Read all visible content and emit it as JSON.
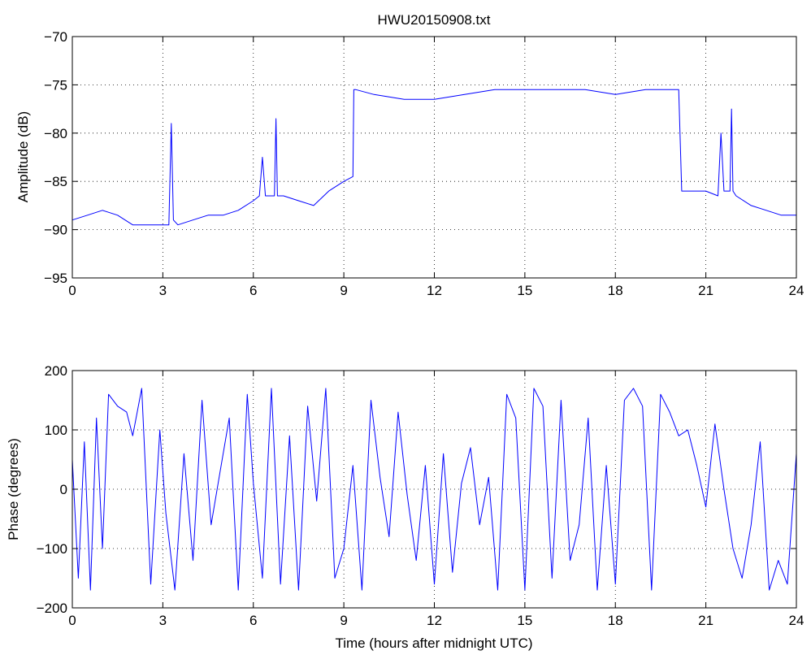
{
  "chart_data": [
    {
      "type": "line",
      "title": "HWU20150908.txt",
      "xlabel": "",
      "ylabel": "Amplitude (dB)",
      "xlim": [
        0,
        24
      ],
      "ylim": [
        -95,
        -70
      ],
      "xticks": [
        0,
        3,
        6,
        9,
        12,
        15,
        18,
        21,
        24
      ],
      "yticks": [
        -95,
        -90,
        -85,
        -80,
        -75,
        -70
      ],
      "xtick_labels": [
        "0",
        "3",
        "6",
        "9",
        "12",
        "15",
        "18",
        "21",
        "24"
      ],
      "ytick_labels": [
        "−95",
        "−90",
        "−85",
        "−80",
        "−75",
        "−70"
      ],
      "grid": true,
      "line_color": "#0000ff",
      "series": [
        {
          "x": [
            0,
            0.5,
            1,
            1.5,
            2,
            2.5,
            3,
            3.2,
            3.28,
            3.35,
            3.5,
            4,
            4.5,
            5,
            5.5,
            6,
            6.2,
            6.3,
            6.4,
            6.5,
            6.7,
            6.75,
            6.8,
            7,
            7.5,
            8,
            8.5,
            9,
            9.3,
            9.33,
            9.4,
            10,
            11,
            12,
            13,
            14,
            15,
            16,
            17,
            18,
            19,
            20,
            20.1,
            20.2,
            20.5,
            21,
            21.4,
            21.5,
            21.6,
            21.8,
            21.85,
            21.9,
            22,
            22.5,
            23,
            23.5,
            24
          ],
          "y": [
            -89,
            -88.5,
            -88,
            -88.5,
            -89.5,
            -89.5,
            -89.5,
            -89.5,
            -79,
            -89,
            -89.5,
            -89,
            -88.5,
            -88.5,
            -88,
            -87,
            -86.5,
            -82.5,
            -86.5,
            -86.5,
            -86.5,
            -78.5,
            -86.5,
            -86.5,
            -87,
            -87.5,
            -86,
            -85,
            -84.5,
            -75.5,
            -75.5,
            -76,
            -76.5,
            -76.5,
            -76,
            -75.5,
            -75.5,
            -75.5,
            -75.5,
            -76,
            -75.5,
            -75.5,
            -75.5,
            -86,
            -86,
            -86,
            -86.5,
            -80,
            -86,
            -86,
            -77.5,
            -86,
            -86.5,
            -87.5,
            -88,
            -88.5,
            -88.5
          ]
        }
      ]
    },
    {
      "type": "line",
      "title": "",
      "xlabel": "Time (hours after midnight UTC)",
      "ylabel": "Phase (degrees)",
      "xlim": [
        0,
        24
      ],
      "ylim": [
        -200,
        200
      ],
      "xticks": [
        0,
        3,
        6,
        9,
        12,
        15,
        18,
        21,
        24
      ],
      "yticks": [
        -200,
        -100,
        0,
        100,
        200
      ],
      "xtick_labels": [
        "0",
        "3",
        "6",
        "9",
        "12",
        "15",
        "18",
        "21",
        "24"
      ],
      "ytick_labels": [
        "−200",
        "−100",
        "0",
        "100",
        "200"
      ],
      "grid": true,
      "line_color": "#0000ff",
      "series": [
        {
          "x": [
            0,
            0.2,
            0.4,
            0.6,
            0.8,
            1.0,
            1.2,
            1.5,
            1.8,
            2.0,
            2.3,
            2.6,
            2.9,
            3.1,
            3.4,
            3.7,
            4.0,
            4.3,
            4.6,
            4.9,
            5.2,
            5.5,
            5.8,
            6.0,
            6.3,
            6.6,
            6.9,
            7.2,
            7.5,
            7.8,
            8.1,
            8.4,
            8.7,
            9.0,
            9.3,
            9.6,
            9.9,
            10.2,
            10.5,
            10.8,
            11.1,
            11.4,
            11.7,
            12.0,
            12.3,
            12.6,
            12.9,
            13.2,
            13.5,
            13.8,
            14.1,
            14.4,
            14.7,
            15.0,
            15.3,
            15.6,
            15.9,
            16.2,
            16.5,
            16.8,
            17.1,
            17.4,
            17.7,
            18.0,
            18.3,
            18.6,
            18.9,
            19.2,
            19.5,
            19.8,
            20.1,
            20.4,
            20.7,
            21.0,
            21.3,
            21.6,
            21.9,
            22.2,
            22.5,
            22.8,
            23.1,
            23.4,
            23.7,
            24.0
          ],
          "y": [
            50,
            -150,
            80,
            -170,
            120,
            -100,
            160,
            140,
            130,
            90,
            170,
            -160,
            100,
            -40,
            -170,
            60,
            -120,
            150,
            -60,
            30,
            120,
            -170,
            160,
            10,
            -150,
            170,
            -160,
            90,
            -170,
            140,
            -20,
            170,
            -150,
            -100,
            40,
            -170,
            150,
            20,
            -80,
            130,
            -10,
            -120,
            40,
            -160,
            60,
            -140,
            10,
            70,
            -60,
            20,
            -170,
            160,
            120,
            -170,
            170,
            140,
            -150,
            150,
            -120,
            -60,
            120,
            -170,
            40,
            -160,
            150,
            170,
            140,
            -170,
            160,
            130,
            90,
            100,
            40,
            -30,
            110,
            0,
            -100,
            -150,
            -60,
            80,
            -170,
            -120,
            -160,
            60
          ]
        }
      ]
    }
  ]
}
